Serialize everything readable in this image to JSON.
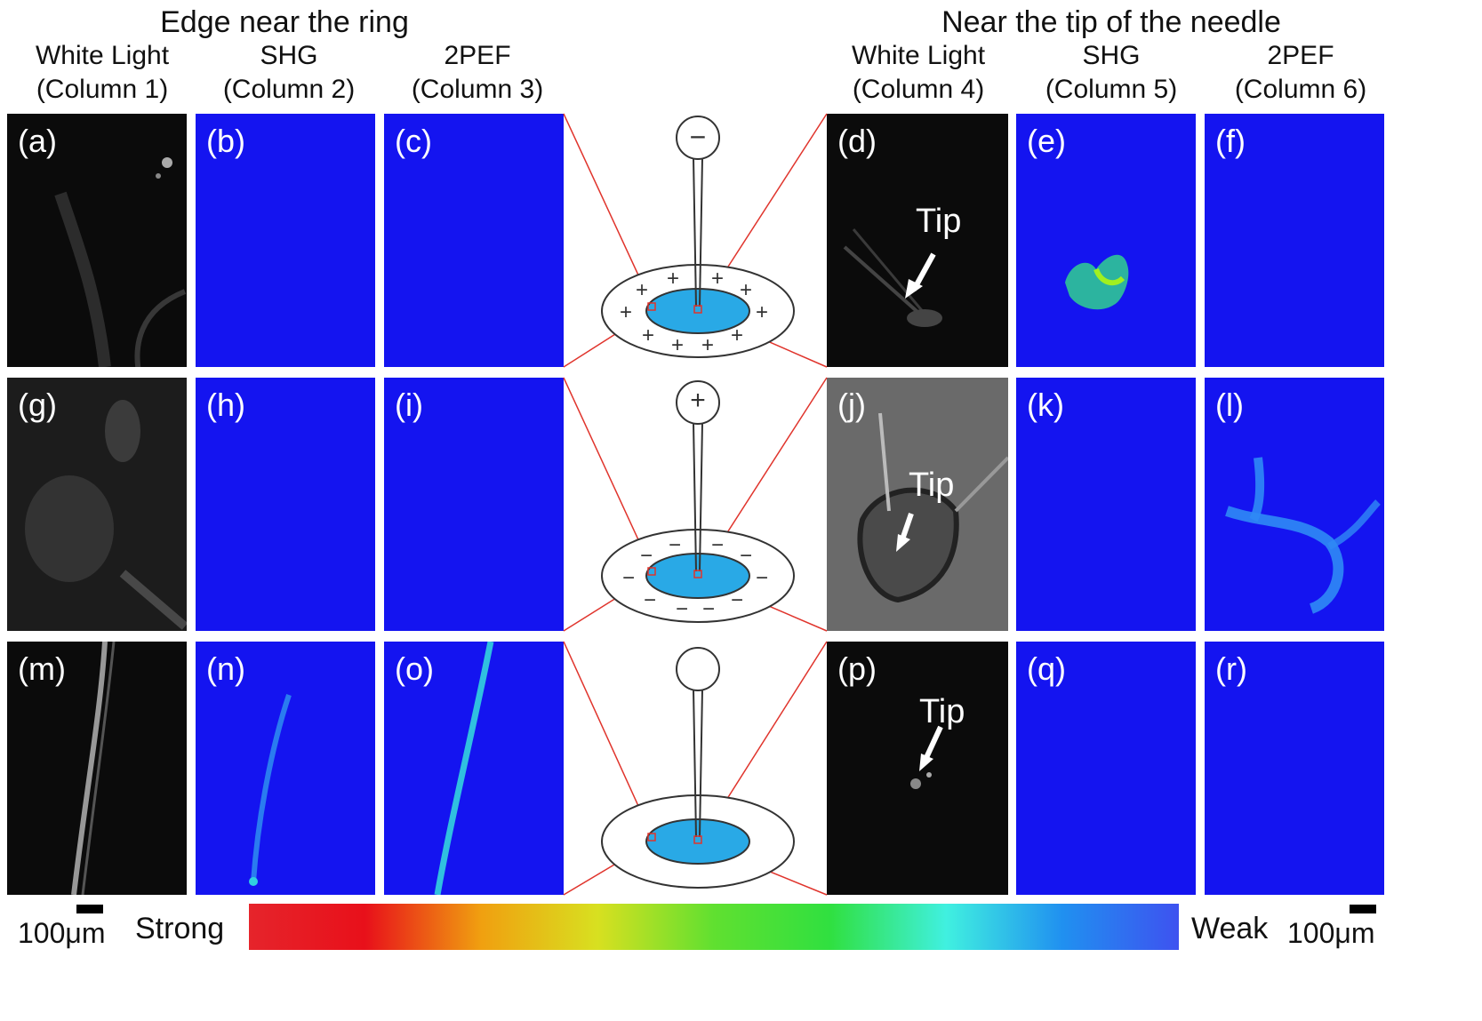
{
  "group_titles": {
    "left": "Edge near the ring",
    "right": "Near the tip of the needle"
  },
  "columns": [
    {
      "line1": "White Light",
      "line2": "(Column 1)"
    },
    {
      "line1": "SHG",
      "line2": "(Column 2)"
    },
    {
      "line1": "2PEF",
      "line2": "(Column 3)"
    },
    {
      "line1": "White Light",
      "line2": "(Column 4)"
    },
    {
      "line1": "SHG",
      "line2": "(Column 5)"
    },
    {
      "line1": "2PEF",
      "line2": "(Column 6)"
    }
  ],
  "panel_labels": [
    [
      "(a)",
      "(b)",
      "(c)",
      "(d)",
      "(e)",
      "(f)"
    ],
    [
      "(g)",
      "(h)",
      "(i)",
      "(j)",
      "(k)",
      "(l)"
    ],
    [
      "(m)",
      "(n)",
      "(o)",
      "(p)",
      "(q)",
      "(r)"
    ]
  ],
  "tip_label": "Tip",
  "needle_signs": [
    "−",
    "+",
    ""
  ],
  "ring_signs": [
    "+",
    "−",
    ""
  ],
  "colorbar": {
    "strong_label": "Strong",
    "weak_label": "Weak",
    "stops": [
      "#e6242b",
      "#e8101a",
      "#f0a010",
      "#d8e020",
      "#60e030",
      "#30e040",
      "#40f0e0",
      "#2090f0",
      "#3e52f0"
    ]
  },
  "scale_left": "100μm",
  "scale_right": "100μm",
  "colors": {
    "panel_blue": "#1414f0",
    "lens_blue": "#29a9e6",
    "connector_red": "#e0342c",
    "sign_color": "#333333"
  }
}
